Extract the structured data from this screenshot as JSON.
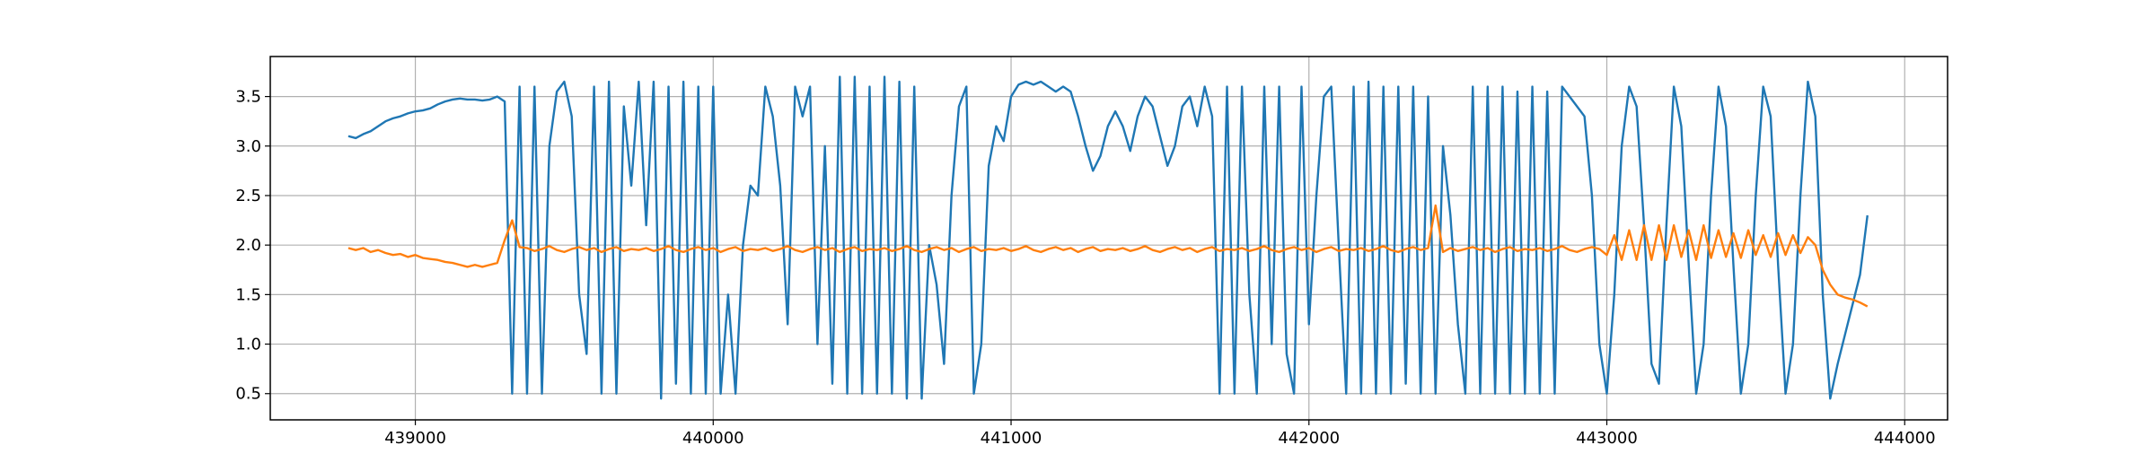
{
  "chart_data": {
    "type": "line",
    "grid": true,
    "xlim": [
      438513,
      444144
    ],
    "ylim": [
      0.235,
      3.904
    ],
    "xticks": [
      439000,
      440000,
      441000,
      442000,
      443000,
      444000
    ],
    "yticks": [
      0.5,
      {
        "value": 1,
        "label": "1.0"
      },
      1.5,
      {
        "value": 2,
        "label": "2.0"
      },
      2.5,
      {
        "value": 3,
        "label": "3.0"
      },
      3.5
    ],
    "x": [
      438775,
      438800,
      438825,
      438850,
      438875,
      438900,
      438925,
      438950,
      438975,
      439000,
      439025,
      439050,
      439075,
      439100,
      439125,
      439150,
      439175,
      439200,
      439225,
      439250,
      439275,
      439300,
      439325,
      439350,
      439375,
      439400,
      439425,
      439450,
      439475,
      439500,
      439525,
      439550,
      439575,
      439600,
      439625,
      439650,
      439675,
      439700,
      439725,
      439750,
      439775,
      439800,
      439825,
      439850,
      439875,
      439900,
      439925,
      439950,
      439975,
      440000,
      440025,
      440050,
      440075,
      440100,
      440125,
      440150,
      440175,
      440200,
      440225,
      440250,
      440275,
      440300,
      440325,
      440350,
      440375,
      440400,
      440425,
      440450,
      440475,
      440500,
      440525,
      440550,
      440575,
      440600,
      440625,
      440650,
      440675,
      440700,
      440725,
      440750,
      440775,
      440800,
      440825,
      440850,
      440875,
      440900,
      440925,
      440950,
      440975,
      441000,
      441025,
      441050,
      441075,
      441100,
      441125,
      441150,
      441175,
      441200,
      441225,
      441250,
      441275,
      441300,
      441325,
      441350,
      441375,
      441400,
      441425,
      441450,
      441475,
      441500,
      441525,
      441550,
      441575,
      441600,
      441625,
      441650,
      441675,
      441700,
      441725,
      441750,
      441775,
      441800,
      441825,
      441850,
      441875,
      441900,
      441925,
      441950,
      441975,
      442000,
      442025,
      442050,
      442075,
      442100,
      442125,
      442150,
      442175,
      442200,
      442225,
      442250,
      442275,
      442300,
      442325,
      442350,
      442375,
      442400,
      442425,
      442450,
      442475,
      442500,
      442525,
      442550,
      442575,
      442600,
      442625,
      442650,
      442675,
      442700,
      442725,
      442750,
      442775,
      442800,
      442825,
      442850,
      442875,
      442900,
      442925,
      442950,
      442975,
      443000,
      443025,
      443050,
      443075,
      443100,
      443125,
      443150,
      443175,
      443200,
      443225,
      443250,
      443275,
      443300,
      443325,
      443350,
      443375,
      443400,
      443425,
      443450,
      443475,
      443500,
      443525,
      443550,
      443575,
      443600,
      443625,
      443650,
      443675,
      443700,
      443725,
      443750,
      443775,
      443800,
      443825,
      443850,
      443875
    ],
    "series": [
      {
        "color": "#1f77b4",
        "values": [
          3.1,
          3.08,
          3.12,
          3.15,
          3.2,
          3.25,
          3.28,
          3.3,
          3.33,
          3.35,
          3.36,
          3.38,
          3.42,
          3.45,
          3.47,
          3.48,
          3.47,
          3.47,
          3.46,
          3.47,
          3.5,
          3.45,
          0.5,
          3.6,
          0.5,
          3.6,
          0.5,
          3.0,
          3.55,
          3.65,
          3.3,
          1.5,
          0.9,
          3.6,
          0.5,
          3.65,
          0.5,
          3.4,
          2.6,
          3.65,
          2.2,
          3.65,
          0.45,
          3.6,
          0.6,
          3.65,
          0.5,
          3.6,
          0.5,
          3.6,
          0.5,
          1.5,
          0.5,
          2.0,
          2.6,
          2.5,
          3.6,
          3.3,
          2.6,
          1.2,
          3.6,
          3.3,
          3.6,
          1.0,
          3.0,
          0.6,
          3.7,
          0.5,
          3.7,
          0.5,
          3.6,
          0.5,
          3.7,
          0.5,
          3.65,
          0.45,
          3.6,
          0.45,
          2.0,
          1.6,
          0.8,
          2.5,
          3.4,
          3.6,
          0.5,
          1.0,
          2.8,
          3.2,
          3.05,
          3.5,
          3.62,
          3.65,
          3.62,
          3.65,
          3.6,
          3.55,
          3.6,
          3.55,
          3.3,
          3.0,
          2.75,
          2.9,
          3.2,
          3.35,
          3.2,
          2.95,
          3.3,
          3.5,
          3.4,
          3.1,
          2.8,
          3.0,
          3.4,
          3.5,
          3.2,
          3.6,
          3.3,
          0.5,
          3.6,
          0.5,
          3.6,
          1.5,
          0.5,
          3.6,
          1.0,
          3.6,
          0.9,
          0.5,
          3.6,
          1.2,
          2.5,
          3.5,
          3.6,
          2.0,
          0.5,
          3.6,
          0.5,
          3.65,
          0.5,
          3.6,
          0.5,
          3.6,
          0.6,
          3.6,
          0.5,
          3.5,
          0.5,
          3.0,
          2.3,
          1.2,
          0.5,
          3.6,
          0.5,
          3.6,
          0.5,
          3.6,
          0.5,
          3.55,
          0.5,
          3.6,
          0.5,
          3.55,
          0.5,
          3.6,
          3.5,
          3.4,
          3.3,
          2.5,
          1.0,
          0.5,
          1.5,
          3.0,
          3.6,
          3.4,
          2.2,
          0.8,
          0.6,
          2.2,
          3.6,
          3.2,
          1.8,
          0.5,
          1.0,
          2.5,
          3.6,
          3.2,
          1.8,
          0.5,
          1.0,
          2.5,
          3.6,
          3.3,
          1.8,
          0.5,
          1.0,
          2.5,
          3.65,
          3.3,
          1.5,
          0.45,
          0.8,
          1.1,
          1.4,
          1.7,
          2.3
        ]
      },
      {
        "color": "#ff7f0e",
        "values": [
          1.97,
          1.95,
          1.97,
          1.93,
          1.95,
          1.92,
          1.9,
          1.91,
          1.88,
          1.9,
          1.87,
          1.86,
          1.85,
          1.83,
          1.82,
          1.8,
          1.78,
          1.8,
          1.78,
          1.8,
          1.82,
          2.05,
          2.25,
          1.98,
          1.97,
          1.94,
          1.96,
          1.99,
          1.95,
          1.93,
          1.96,
          1.98,
          1.95,
          1.97,
          1.93,
          1.96,
          1.98,
          1.94,
          1.96,
          1.95,
          1.97,
          1.94,
          1.96,
          1.99,
          1.95,
          1.93,
          1.96,
          1.98,
          1.95,
          1.97,
          1.93,
          1.96,
          1.98,
          1.94,
          1.96,
          1.95,
          1.97,
          1.94,
          1.96,
          1.99,
          1.95,
          1.93,
          1.96,
          1.98,
          1.95,
          1.97,
          1.93,
          1.96,
          1.98,
          1.94,
          1.96,
          1.95,
          1.97,
          1.94,
          1.96,
          1.99,
          1.95,
          1.93,
          1.96,
          1.98,
          1.95,
          1.97,
          1.93,
          1.96,
          1.98,
          1.94,
          1.96,
          1.95,
          1.97,
          1.94,
          1.96,
          1.99,
          1.95,
          1.93,
          1.96,
          1.98,
          1.95,
          1.97,
          1.93,
          1.96,
          1.98,
          1.94,
          1.96,
          1.95,
          1.97,
          1.94,
          1.96,
          1.99,
          1.95,
          1.93,
          1.96,
          1.98,
          1.95,
          1.97,
          1.93,
          1.96,
          1.98,
          1.94,
          1.96,
          1.95,
          1.97,
          1.94,
          1.96,
          1.99,
          1.95,
          1.93,
          1.96,
          1.98,
          1.95,
          1.97,
          1.93,
          1.96,
          1.98,
          1.94,
          1.96,
          1.95,
          1.97,
          1.94,
          1.96,
          1.99,
          1.95,
          1.93,
          1.96,
          1.98,
          1.95,
          1.97,
          2.4,
          1.93,
          1.97,
          1.94,
          1.96,
          1.98,
          1.95,
          1.97,
          1.93,
          1.96,
          1.98,
          1.94,
          1.96,
          1.95,
          1.97,
          1.94,
          1.96,
          1.99,
          1.95,
          1.93,
          1.96,
          1.98,
          1.96,
          1.9,
          2.1,
          1.85,
          2.15,
          1.85,
          2.2,
          1.85,
          2.2,
          1.85,
          2.2,
          1.88,
          2.15,
          1.85,
          2.2,
          1.87,
          2.15,
          1.88,
          2.12,
          1.87,
          2.15,
          1.9,
          2.1,
          1.88,
          2.12,
          1.9,
          2.1,
          1.92,
          2.08,
          2.0,
          1.75,
          1.6,
          1.5,
          1.47,
          1.45,
          1.42,
          1.38
        ]
      }
    ]
  }
}
